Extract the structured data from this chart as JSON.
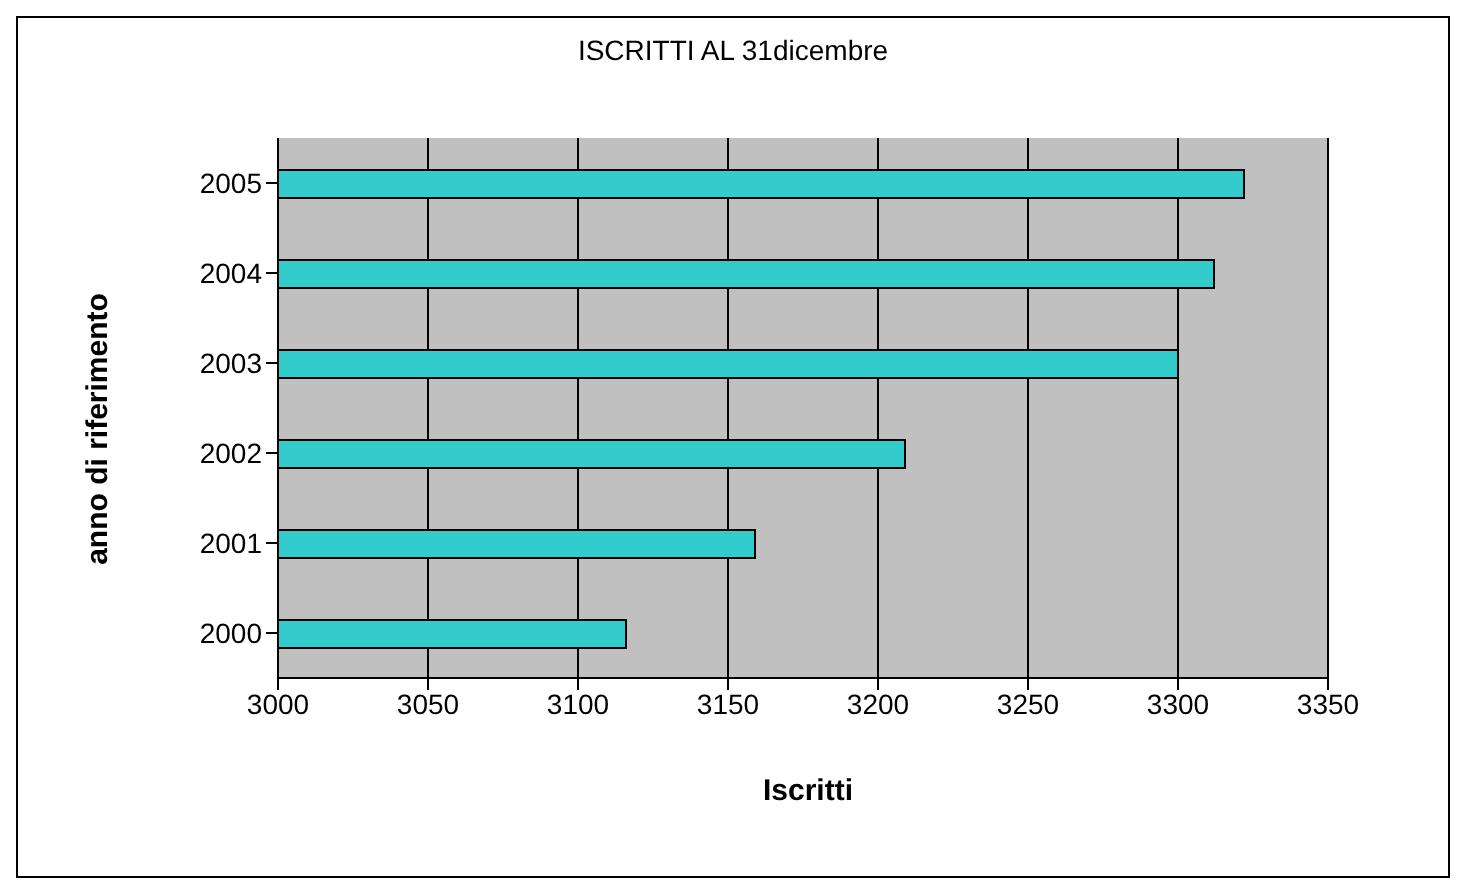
{
  "chart_data": {
    "type": "bar",
    "orientation": "horizontal",
    "title": "ISCRITTI AL 31dicembre",
    "xlabel": "Iscritti",
    "ylabel": "anno di riferimento",
    "categories": [
      "2005",
      "2004",
      "2003",
      "2002",
      "2001",
      "2000"
    ],
    "values": [
      3322,
      3312,
      3300,
      3209,
      3159,
      3116
    ],
    "color": "#33cccc",
    "xlim": [
      3000,
      3350
    ],
    "xticks": [
      3000,
      3050,
      3100,
      3150,
      3200,
      3250,
      3300,
      3350
    ],
    "grid": "x"
  }
}
